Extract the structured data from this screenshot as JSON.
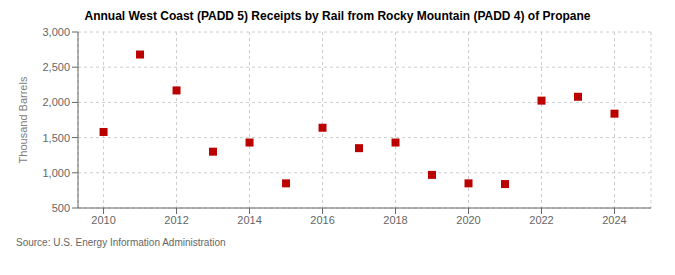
{
  "chart_data": {
    "type": "scatter",
    "title": "Annual West Coast (PADD 5) Receipts by Rail from Rocky Mountain (PADD 4) of Propane",
    "y_label": "Thousand Barrels",
    "annotations": [
      "Source: U.S. Energy Information Administration"
    ],
    "x": [
      2010,
      2011,
      2012,
      2013,
      2014,
      2015,
      2016,
      2017,
      2018,
      2019,
      2020,
      2021,
      2022,
      2023,
      2024
    ],
    "values": [
      1580,
      2680,
      2170,
      1300,
      1430,
      850,
      1640,
      1350,
      1430,
      970,
      850,
      840,
      2025,
      2080,
      1840
    ],
    "xlim": [
      2009.3,
      2025.0
    ],
    "xticks": [
      2010,
      2012,
      2014,
      2016,
      2018,
      2020,
      2022,
      2024
    ],
    "ylim": [
      500,
      3000
    ],
    "yticks": [
      500,
      {
        "value": 1000,
        "label": "1,000"
      },
      {
        "value": 1500,
        "label": "1,500"
      },
      {
        "value": 2000,
        "label": "2,000"
      },
      {
        "value": 2500,
        "label": "2,500"
      },
      {
        "value": 3000,
        "label": "3,000"
      }
    ],
    "color": "#bb0000",
    "marker": "square",
    "grid": true
  }
}
